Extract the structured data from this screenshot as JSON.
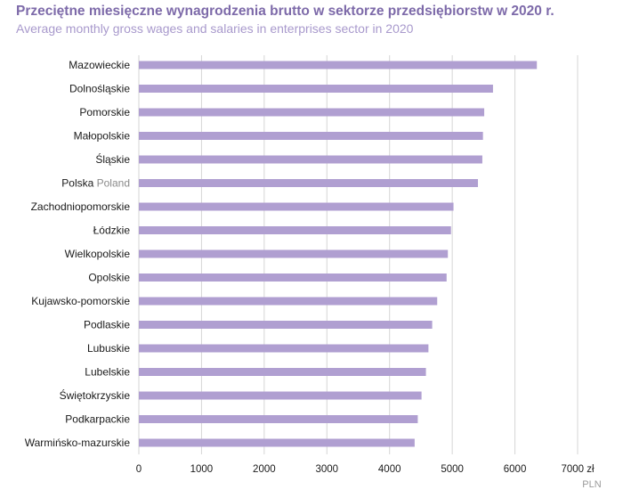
{
  "header": {
    "title": "Przeciętne miesięczne wynagrodzenia brutto w sektorze przedsiębiorstw w 2020 r.",
    "subtitle": "Average monthly gross wages and salaries in enterprises sector in 2020"
  },
  "chart_data": {
    "type": "bar",
    "orientation": "horizontal",
    "title": "Przeciętne miesięczne wynagrodzenia brutto w sektorze przedsiębiorstw w 2020 r.",
    "subtitle": "Average monthly gross wages and salaries in enterprises sector in 2020",
    "categories": [
      {
        "label": "Mazowieckie",
        "label_en": ""
      },
      {
        "label": "Dolnośląskie",
        "label_en": ""
      },
      {
        "label": "Pomorskie",
        "label_en": ""
      },
      {
        "label": "Małopolskie",
        "label_en": ""
      },
      {
        "label": "Śląskie",
        "label_en": ""
      },
      {
        "label": "Polska",
        "label_en": "Poland"
      },
      {
        "label": "Zachodniopomorskie",
        "label_en": ""
      },
      {
        "label": "Łódzkie",
        "label_en": ""
      },
      {
        "label": "Wielkopolskie",
        "label_en": ""
      },
      {
        "label": "Opolskie",
        "label_en": ""
      },
      {
        "label": "Kujawsko-pomorskie",
        "label_en": ""
      },
      {
        "label": "Podlaskie",
        "label_en": ""
      },
      {
        "label": "Lubuskie",
        "label_en": ""
      },
      {
        "label": "Lubelskie",
        "label_en": ""
      },
      {
        "label": "Świętokrzyskie",
        "label_en": ""
      },
      {
        "label": "Podkarpackie",
        "label_en": ""
      },
      {
        "label": "Warmińsko-mazurskie",
        "label_en": ""
      }
    ],
    "values": [
      6350,
      5650,
      5510,
      5490,
      5480,
      5410,
      5020,
      4980,
      4930,
      4910,
      4760,
      4680,
      4620,
      4580,
      4510,
      4450,
      4400
    ],
    "xlim": [
      0,
      7000
    ],
    "ticks": [
      "0",
      "1000",
      "2000",
      "3000",
      "4000",
      "5000",
      "6000",
      "7000 zł"
    ],
    "tick_values": [
      0,
      1000,
      2000,
      3000,
      4000,
      5000,
      6000,
      7000
    ],
    "unit_en": "PLN",
    "grid": true,
    "bar_color": "#b09fd1",
    "grid_color": "#d6d6d6"
  }
}
